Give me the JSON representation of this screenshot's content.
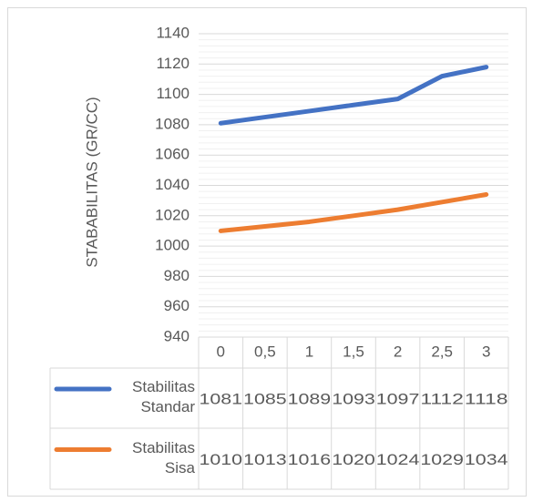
{
  "chart_data": {
    "type": "line",
    "y_label": "STABABILITAS (GR/CC)",
    "categories": [
      "0",
      "0,5",
      "1",
      "1,5",
      "2",
      "2,5",
      "3"
    ],
    "series": [
      {
        "name": "Stabilitas Standar",
        "color": "#4472c4",
        "values": [
          1081,
          1085,
          1089,
          1093,
          1097,
          1112,
          1118
        ]
      },
      {
        "name": "Stabilitas Sisa",
        "color": "#ed7d31",
        "values": [
          1010,
          1013,
          1016,
          1020,
          1024,
          1029,
          1034
        ]
      }
    ],
    "ylim": [
      940,
      1140
    ],
    "yticks": [
      940,
      960,
      980,
      1000,
      1020,
      1040,
      1060,
      1080,
      1100,
      1120,
      1140
    ],
    "grid": true,
    "data_table": true
  }
}
